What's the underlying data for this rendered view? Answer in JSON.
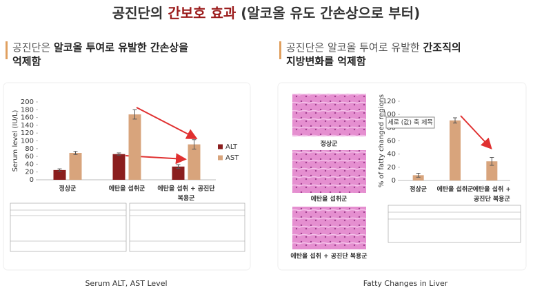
{
  "title_parts": [
    {
      "text": "공진단의 ",
      "accent": false
    },
    {
      "text": "간보호 효과",
      "accent": true
    },
    {
      "text": " (알코올 유도 간손상으로 부터)",
      "accent": false
    }
  ],
  "panels": [
    {
      "heading": [
        [
          {
            "text": "공진단은 ",
            "bold": false
          },
          {
            "text": "알코올 투여로 유발한 간손상을",
            "bold": true
          }
        ],
        [
          {
            "text": "억제함",
            "bold": true
          }
        ]
      ],
      "caption": "Serum ALT, AST Level"
    },
    {
      "heading": [
        [
          {
            "text": "공진단은 알코올 투여로 유발한 ",
            "bold": false
          },
          {
            "text": "간조직의",
            "bold": true
          }
        ],
        [
          {
            "text": "지방변화를 억제함",
            "bold": true
          }
        ]
      ],
      "caption": "Fatty Changes in Liver"
    }
  ],
  "images": [
    {
      "label": "정상군"
    },
    {
      "label": "에탄올 섭취군"
    },
    {
      "label": "에탄올 섭취 + 공진단 복용군"
    }
  ],
  "chart_data": [
    {
      "type": "bar",
      "ylabel": "Serum level (IU/L)",
      "categories": [
        [
          "정상군"
        ],
        [
          "에탄올 섭취군"
        ],
        [
          "에탄올 섭취 + 공진단",
          "복용군"
        ]
      ],
      "series": [
        {
          "name": "ALT",
          "color": "#8b1e1e",
          "values": [
            25,
            66,
            34
          ],
          "errors": [
            3,
            3,
            5
          ]
        },
        {
          "name": "AST",
          "color": "#d8a47c",
          "values": [
            69,
            168,
            91
          ],
          "errors": [
            4,
            12,
            12
          ]
        }
      ],
      "ylim": [
        0,
        200
      ],
      "yticks": [
        0,
        20,
        40,
        60,
        80,
        100,
        120,
        140,
        160,
        180,
        200
      ],
      "legend": "right"
    },
    {
      "type": "bar",
      "ylabel": "% of fatty changed regions",
      "tooltip": "세로 (값) 축 제목",
      "categories": [
        [
          "정상군"
        ],
        [
          "에탄올 섭취군"
        ],
        [
          "에탄올 섭취 +",
          "공진단 복용군"
        ]
      ],
      "series": [
        {
          "color": "#d8a47c",
          "values": [
            8,
            91,
            29
          ],
          "errors": [
            3,
            4,
            6
          ]
        }
      ],
      "ylim": [
        0,
        120
      ],
      "yticks": [
        0,
        20,
        40,
        60,
        80,
        100,
        120
      ]
    }
  ]
}
